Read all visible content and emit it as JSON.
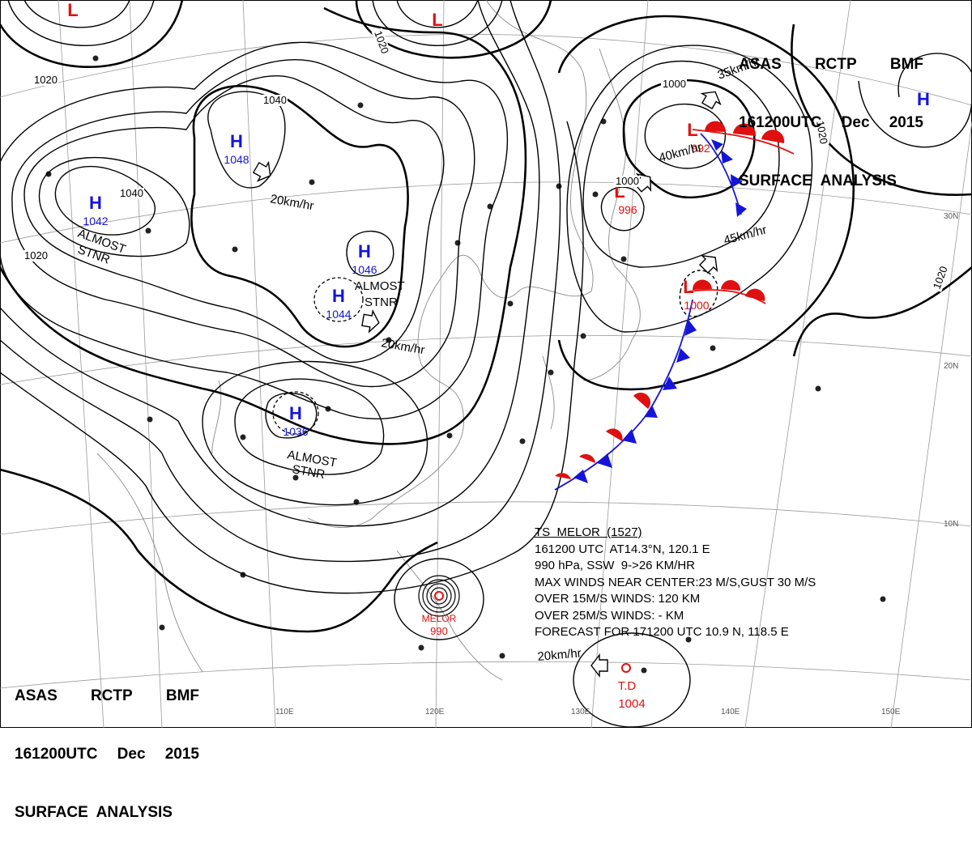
{
  "header": {
    "line1": [
      "ASAS",
      "RCTP",
      "BMF"
    ],
    "line2": [
      "161200UTC",
      "Dec",
      "2015"
    ],
    "line3": "SURFACE  ANALYSIS"
  },
  "colors": {
    "high": "#1515d8",
    "low": "#e01010",
    "isobar": "#000000",
    "grid": "#9a9a9a"
  },
  "highs": [
    {
      "label": "H",
      "value": "1048"
    },
    {
      "label": "H",
      "value": "1042"
    },
    {
      "label": "H",
      "value": "1046"
    },
    {
      "label": "H",
      "value": "1044"
    },
    {
      "label": "H",
      "value": "1036"
    },
    {
      "label": "H",
      "value": ""
    }
  ],
  "lows": [
    {
      "label": "L",
      "value": "992"
    },
    {
      "label": "L",
      "value": "996"
    },
    {
      "label": "L",
      "value": "1000"
    },
    {
      "label": "L",
      "value": ""
    },
    {
      "label": "L",
      "value": ""
    }
  ],
  "isobar_labels": [
    "1020",
    "1020",
    "1040",
    "1040",
    "1020",
    "1000",
    "1000",
    "1020",
    "1020"
  ],
  "motion_labels": [
    "20km/hr",
    "20km/hr",
    "40km/hr",
    "35km/hr",
    "45km/hr",
    "20km/hr"
  ],
  "notes": [
    "ALMOST",
    "STNR",
    "ALMOST",
    "STNR",
    "ALMOST",
    "STNR"
  ],
  "typhoon": {
    "name": "MELOR",
    "pressure": "990",
    "info": [
      "TS  MELOR  (1527)",
      "161200 UTC  AT14.3°N, 120.1 E",
      "990 hPa, SSW  9->26 KM/HR",
      "MAX WINDS NEAR CENTER:23 M/S,GUST 30 M/S",
      "OVER 15M/S WINDS: 120 KM",
      "OVER 25M/S WINDS: - KM",
      "FORECAST FOR 171200 UTC 10.9 N, 118.5 E"
    ]
  },
  "td": {
    "label": "T.D",
    "pressure": "1004"
  },
  "grid_labels": {
    "longitudes": [
      "110E",
      "120E",
      "130E",
      "140E",
      "150E"
    ],
    "latitudes": [
      "30N",
      "20N",
      "10N"
    ]
  }
}
